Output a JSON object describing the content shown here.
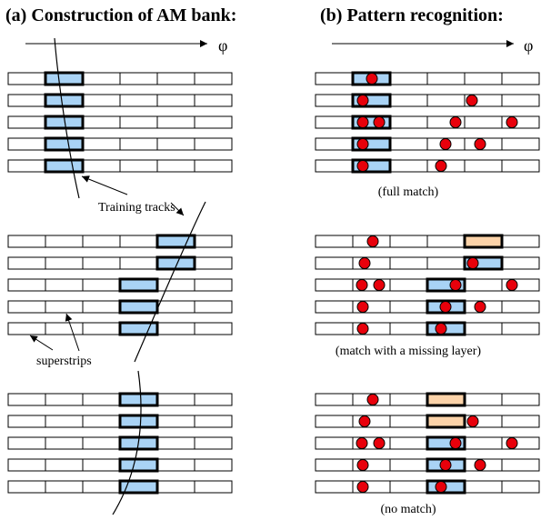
{
  "panels": {
    "a_title": "(a) Construction of AM bank:",
    "b_title": "(b) Pattern recognition:"
  },
  "axis_symbol": "φ",
  "annotations": {
    "training_tracks": "Training tracks",
    "superstrips": "superstrips"
  },
  "captions": {
    "full_match": "(full match)",
    "missing_layer": "(match with a missing layer)",
    "no_match": "(no match)"
  },
  "colors": {
    "superstrip_fill": "#a9d3f5",
    "missing_fill": "#fcd3a9",
    "hit": "#e8000b",
    "line": "#000000"
  },
  "layout_model": {
    "layers_per_group": 5,
    "strips_per_layer": 6
  }
}
